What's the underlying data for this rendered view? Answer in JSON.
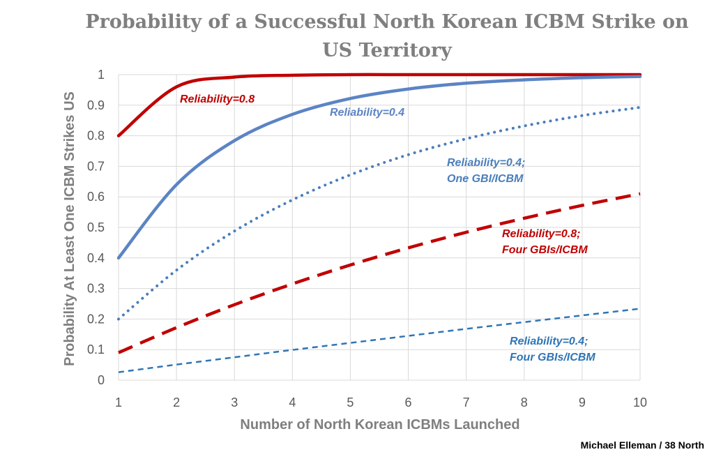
{
  "chart_data": {
    "type": "line",
    "title": [
      "Probability of a Successful North Korean ICBM Strike on",
      "US Territory"
    ],
    "xlabel": "Number of North Korean ICBMs Launched",
    "ylabel": "Probability At Least One ICBM Strikes US",
    "xlim": [
      1,
      10
    ],
    "ylim": [
      0,
      1
    ],
    "xticks": [
      "1",
      "2",
      "3",
      "4",
      "5",
      "6",
      "7",
      "8",
      "9",
      "10"
    ],
    "yticks": [
      "0",
      "0.1",
      "0.2",
      "0.3",
      "0.4",
      "0.5",
      "0.6",
      "0.7",
      "0.8",
      "0.9",
      "1"
    ],
    "grid": true,
    "legend": "none",
    "credit": "Michael Elleman / 38 North",
    "x": [
      1,
      2,
      3,
      4,
      5,
      6,
      7,
      8,
      9,
      10
    ],
    "series": [
      {
        "label": [
          "Reliability=0.8"
        ],
        "color": "#c00000",
        "style": "solid",
        "values": [
          0.8,
          0.96,
          0.992,
          0.998,
          1.0,
          1.0,
          1.0,
          1.0,
          1.0,
          1.0
        ]
      },
      {
        "label": [
          "Reliability=0.4"
        ],
        "color": "#5b84c4",
        "style": "solid",
        "values": [
          0.4,
          0.64,
          0.784,
          0.87,
          0.922,
          0.953,
          0.972,
          0.983,
          0.99,
          0.994
        ]
      },
      {
        "label": [
          "Reliability=0.4;",
          "One GBI/ICBM"
        ],
        "color": "#4a7ebb",
        "style": "dotted",
        "values": [
          0.2,
          0.36,
          0.488,
          0.59,
          0.672,
          0.738,
          0.79,
          0.832,
          0.866,
          0.893
        ]
      },
      {
        "label": [
          "Reliability=0.8;",
          "Four GBIs/ICBM"
        ],
        "color": "#c00000",
        "style": "dashed",
        "values": [
          0.09,
          0.172,
          0.247,
          0.315,
          0.377,
          0.433,
          0.484,
          0.53,
          0.572,
          0.61
        ]
      },
      {
        "label": [
          "Reliability=0.4;",
          "Four GBIs/ICBM"
        ],
        "color": "#2e75b6",
        "style": "short-dashed",
        "values": [
          0.026,
          0.051,
          0.075,
          0.099,
          0.122,
          0.145,
          0.168,
          0.19,
          0.212,
          0.234
        ]
      }
    ]
  }
}
